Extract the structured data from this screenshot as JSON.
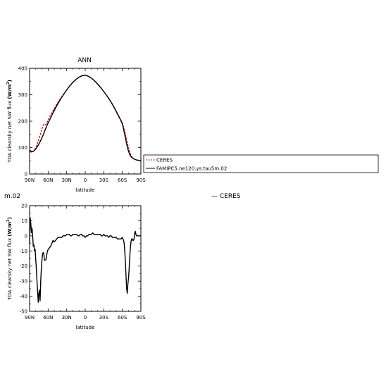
{
  "chart_data": [
    {
      "type": "line",
      "title": "ANN",
      "xlabel": "latitude",
      "ylabel": "TOA clearsky net SW flux (W/m²)",
      "ylabel_main": "TOA clearsky net SW flux ",
      "ylabel_unit": "(W/m",
      "ylabel_sup": "2",
      "ylabel_close": ")",
      "xlim": [
        90,
        -90
      ],
      "ylim": [
        0,
        400
      ],
      "x_ticks": [
        90,
        60,
        30,
        0,
        -30,
        -60,
        -90
      ],
      "x_tick_labels": [
        "90N",
        "60N",
        "30N",
        "0",
        "30S",
        "60S",
        "90S"
      ],
      "y_ticks": [
        0,
        100,
        200,
        300,
        400
      ],
      "y_tick_labels": [
        "0",
        "100",
        "200",
        "300",
        "400"
      ],
      "legend_position": "right, outside",
      "series": [
        {
          "name": "CERES",
          "color": "#cc0000",
          "dash": "dashed",
          "x": [
            90,
            88,
            86,
            84,
            82,
            80,
            78,
            76,
            74,
            72,
            70,
            68,
            66,
            64,
            62,
            60,
            56,
            52,
            48,
            44,
            40,
            35,
            30,
            25,
            20,
            15,
            10,
            5,
            2,
            0,
            -2,
            -5,
            -10,
            -15,
            -20,
            -25,
            -30,
            -35,
            -40,
            -44,
            -48,
            -52,
            -56,
            -60,
            -62,
            -64,
            -66,
            -68,
            -70,
            -72,
            -74,
            -76,
            -78,
            -80,
            -82,
            -84,
            -86,
            -88,
            -90
          ],
          "values": [
            85,
            83,
            82,
            85,
            90,
            100,
            112,
            125,
            140,
            155,
            172,
            185,
            190,
            187,
            192,
            205,
            222,
            240,
            256,
            272,
            286,
            302,
            318,
            333,
            346,
            357,
            366,
            371,
            373,
            373,
            372,
            369,
            362,
            352,
            340,
            327,
            312,
            297,
            280,
            265,
            248,
            230,
            212,
            194,
            178,
            160,
            140,
            118,
            98,
            82,
            70,
            63,
            58,
            55,
            53,
            52,
            51,
            50,
            50
          ]
        },
        {
          "name": "FAMIPC5.ne120.ys.tau5m.02",
          "color": "#000000",
          "dash": "solid",
          "x": [
            90,
            88,
            86,
            84,
            82,
            80,
            78,
            76,
            74,
            72,
            70,
            68,
            66,
            64,
            62,
            60,
            56,
            52,
            48,
            44,
            40,
            35,
            30,
            25,
            20,
            15,
            10,
            5,
            2,
            0,
            -2,
            -5,
            -10,
            -15,
            -20,
            -25,
            -30,
            -35,
            -40,
            -44,
            -48,
            -52,
            -56,
            -60,
            -62,
            -64,
            -66,
            -68,
            -70,
            -72,
            -74,
            -76,
            -78,
            -80,
            -82,
            -84,
            -86,
            -88,
            -90
          ],
          "values": [
            90,
            87,
            85,
            86,
            90,
            95,
            101,
            109,
            118,
            127,
            137,
            148,
            160,
            172,
            183,
            193,
            212,
            232,
            250,
            267,
            283,
            301,
            318,
            334,
            347,
            358,
            367,
            372,
            374,
            374,
            373,
            370,
            363,
            353,
            341,
            327,
            312,
            296,
            279,
            263,
            246,
            228,
            210,
            190,
            170,
            148,
            125,
            103,
            86,
            74,
            66,
            61,
            58,
            56,
            54,
            53,
            52,
            51,
            50
          ]
        }
      ]
    },
    {
      "type": "line",
      "title": "m.02",
      "xlabel": "latitude",
      "ylabel": "TOA clearsky net SW flux (W/m²)",
      "ylabel_main": "TOA clearsky net SW flux ",
      "ylabel_unit": "(W/m",
      "ylabel_sup": "2",
      "ylabel_close": ")",
      "xlim": [
        90,
        -90
      ],
      "ylim": [
        -50,
        20
      ],
      "x_ticks": [
        90,
        60,
        30,
        0,
        -30,
        -60,
        -90
      ],
      "x_tick_labels": [
        "90N",
        "60N",
        "30N",
        "0",
        "30S",
        "60S",
        "90S"
      ],
      "y_ticks": [
        20,
        10,
        0,
        -10,
        -20,
        -30,
        -40,
        -50
      ],
      "y_tick_labels": [
        "20",
        "10",
        "0",
        "-10",
        "-20",
        "-30",
        "-40",
        "-50"
      ],
      "legend_text": "— CERES",
      "series": [
        {
          "name": "",
          "color": "#000000",
          "dash": "solid",
          "x": [
            90,
            89,
            88,
            87,
            86,
            85,
            84,
            83,
            82,
            81,
            80,
            79,
            78,
            77,
            76,
            75,
            74,
            73,
            72,
            71,
            70,
            69,
            68,
            67,
            66,
            65,
            64,
            63,
            62,
            61,
            60,
            58,
            56,
            54,
            52,
            50,
            48,
            46,
            44,
            42,
            40,
            38,
            36,
            34,
            32,
            30,
            28,
            26,
            24,
            22,
            20,
            18,
            16,
            14,
            12,
            10,
            8,
            6,
            4,
            2,
            0,
            -2,
            -4,
            -6,
            -8,
            -10,
            -12,
            -14,
            -16,
            -18,
            -20,
            -22,
            -24,
            -26,
            -28,
            -30,
            -32,
            -34,
            -36,
            -38,
            -40,
            -42,
            -44,
            -46,
            -48,
            -50,
            -52,
            -54,
            -56,
            -58,
            -60,
            -61,
            -62,
            -63,
            -64,
            -65,
            -66,
            -67,
            -68,
            -69,
            -70,
            -71,
            -72,
            -73,
            -74,
            -75,
            -76,
            -77,
            -78,
            -79,
            -80,
            -81,
            -82,
            -83,
            -84,
            -85,
            -86,
            -87,
            -88,
            -89,
            -90
          ],
          "values": [
            -5,
            12,
            8,
            2,
            5,
            0,
            -7,
            -6,
            -10,
            -9,
            -16,
            -22,
            -30,
            -37,
            -44,
            -38,
            -36,
            -43,
            -30,
            -22,
            -16,
            -12,
            -11,
            -12,
            -16,
            -16,
            -16,
            -15,
            -12,
            -10,
            -9,
            -8,
            -7,
            -5,
            -3,
            -4,
            -3,
            -2,
            -1,
            -1,
            -1,
            -1,
            0,
            0,
            0,
            1,
            1,
            1,
            0,
            0,
            1,
            1,
            1,
            1,
            0,
            0,
            1,
            1,
            0,
            0,
            -1,
            0,
            0,
            1,
            1,
            1,
            2,
            1,
            1,
            1,
            1,
            1,
            1,
            0,
            0,
            1,
            0,
            0,
            0,
            -1,
            0,
            0,
            -1,
            -1,
            -1,
            -1,
            -2,
            -2,
            -2,
            -2,
            -1,
            -2,
            -3,
            -5,
            -10,
            -18,
            -27,
            -35,
            -38,
            -32,
            -28,
            -22,
            -14,
            -8,
            -4,
            -2,
            -2,
            -3,
            -3,
            -2,
            2,
            3,
            1,
            0,
            0,
            0,
            0,
            0,
            0,
            0,
            0
          ]
        }
      ]
    }
  ]
}
